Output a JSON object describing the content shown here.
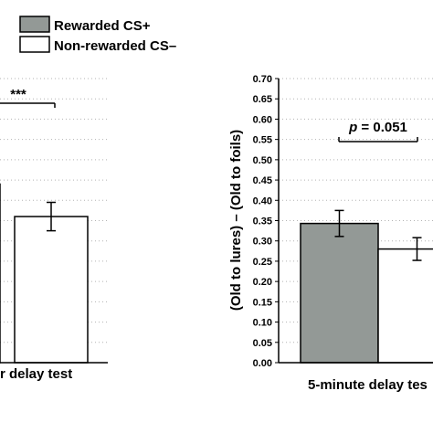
{
  "legend": {
    "items": [
      {
        "label": "Rewarded CS+",
        "color": "#939996"
      },
      {
        "label": "Non-rewarded CS–",
        "color": "#ffffff"
      }
    ]
  },
  "chart_data": [
    {
      "type": "bar",
      "categories": [
        "r delay test"
      ],
      "series": [
        {
          "name": "Rewarded CS+",
          "values": [
            0.44
          ],
          "error": [
            null
          ],
          "color": "#939996"
        },
        {
          "name": "Non-rewarded CS–",
          "values": [
            0.36
          ],
          "error": [
            0.035
          ],
          "color": "#ffffff"
        }
      ],
      "xlabel": "r delay test",
      "ylabel": "",
      "ylim": [
        0,
        0.7
      ],
      "grid": "dotted-horizontal",
      "annotation": {
        "text": "***",
        "between": [
          "Rewarded CS+",
          "Non-rewarded CS–"
        ]
      }
    },
    {
      "type": "bar",
      "categories": [
        "5-minute delay tes"
      ],
      "series": [
        {
          "name": "Rewarded CS+",
          "values": [
            0.343
          ],
          "error": [
            0.032
          ],
          "color": "#939996"
        },
        {
          "name": "Non-rewarded CS–",
          "values": [
            0.28
          ],
          "error": [
            0.028
          ],
          "color": "#ffffff"
        }
      ],
      "xlabel": "5-minute delay tes",
      "ylabel": "(Old to lures) – (Old to foils)",
      "ylim": [
        0,
        0.7
      ],
      "yticks": [
        "0.00",
        "0.05",
        "0.10",
        "0.15",
        "0.20",
        "0.25",
        "0.30",
        "0.35",
        "0.40",
        "0.45",
        "0.50",
        "0.55",
        "0.60",
        "0.65",
        "0.70"
      ],
      "grid": "dotted-horizontal",
      "annotation": {
        "text": "p = 0.051",
        "between": [
          "Rewarded CS+",
          "Non-rewarded CS–"
        ]
      }
    }
  ]
}
